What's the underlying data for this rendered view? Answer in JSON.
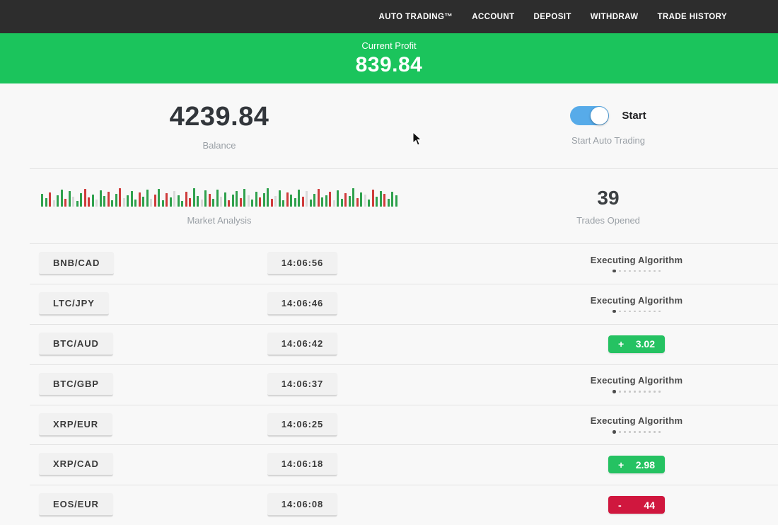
{
  "nav": {
    "items": [
      {
        "label": "AUTO TRADING™"
      },
      {
        "label": "ACCOUNT"
      },
      {
        "label": "DEPOSIT"
      },
      {
        "label": "WITHDRAW"
      },
      {
        "label": "TRADE HISTORY"
      }
    ]
  },
  "profit_banner": {
    "label": "Current Profit",
    "value": "839.84"
  },
  "account": {
    "balance_value": "4239.84",
    "balance_label": "Balance",
    "toggle_label": "Start",
    "toggle_caption": "Start Auto Trading",
    "toggle_state": "on"
  },
  "market": {
    "trades_value": "39",
    "trades_label": "Trades Opened"
  },
  "chart_data": {
    "type": "bar",
    "title": "Market Analysis",
    "values": [
      18,
      12,
      20,
      9,
      16,
      24,
      11,
      22,
      14,
      8,
      19,
      25,
      13,
      17,
      10,
      23,
      15,
      21,
      9,
      18,
      26,
      12,
      16,
      22,
      10,
      20,
      14,
      24,
      11,
      17,
      25,
      9,
      19,
      13,
      22,
      16,
      8,
      21,
      12,
      26,
      15,
      10,
      23,
      18,
      11,
      24,
      14,
      20,
      9,
      17,
      22,
      12,
      25,
      16,
      10,
      21,
      13,
      19,
      26,
      11,
      15,
      23,
      9,
      20,
      17,
      12,
      24,
      14,
      22,
      10,
      18,
      25,
      13,
      16,
      21,
      9,
      23,
      11,
      19,
      15,
      26,
      12,
      20,
      17,
      10,
      24,
      14,
      22,
      18,
      11,
      21,
      16
    ],
    "colors": [
      "g",
      "g",
      "r",
      "l",
      "g",
      "g",
      "r",
      "g",
      "l",
      "g",
      "g",
      "r",
      "r",
      "g",
      "l",
      "g",
      "g",
      "r",
      "g",
      "g",
      "r",
      "l",
      "g",
      "g",
      "g",
      "r",
      "g",
      "g",
      "l",
      "r",
      "g",
      "g",
      "r",
      "g",
      "l",
      "g",
      "g",
      "r",
      "r",
      "g",
      "g",
      "l",
      "g",
      "r",
      "g",
      "g",
      "l",
      "g",
      "r",
      "g",
      "g",
      "r",
      "g",
      "l",
      "g",
      "g",
      "r",
      "g",
      "g",
      "r",
      "l",
      "g",
      "g",
      "r",
      "g",
      "g",
      "g",
      "r",
      "l",
      "g",
      "g",
      "r",
      "g",
      "g",
      "r",
      "l",
      "g",
      "g",
      "r",
      "g",
      "g",
      "r",
      "g",
      "l",
      "g",
      "r",
      "g",
      "g",
      "r",
      "g",
      "g",
      "g"
    ],
    "color_map": {
      "g": "#2fa14d",
      "r": "#cf3b3b",
      "l": "#d9d9d9"
    },
    "ylim": [
      0,
      28
    ]
  },
  "trades": [
    {
      "pair": "BNB/CAD",
      "time": "14:06:56",
      "status": "executing",
      "status_label": "Executing Algorithm"
    },
    {
      "pair": "LTC/JPY",
      "time": "14:06:46",
      "status": "executing",
      "status_label": "Executing Algorithm"
    },
    {
      "pair": "BTC/AUD",
      "time": "14:06:42",
      "status": "profit",
      "sign": "+",
      "result": "3.02"
    },
    {
      "pair": "BTC/GBP",
      "time": "14:06:37",
      "status": "executing",
      "status_label": "Executing Algorithm"
    },
    {
      "pair": "XRP/EUR",
      "time": "14:06:25",
      "status": "executing",
      "status_label": "Executing Algorithm"
    },
    {
      "pair": "XRP/CAD",
      "time": "14:06:18",
      "status": "profit",
      "sign": "+",
      "result": "2.98"
    },
    {
      "pair": "EOS/EUR",
      "time": "14:06:08",
      "status": "loss",
      "sign": "-",
      "result": "44"
    }
  ],
  "status_dots_total": 10,
  "colors": {
    "nav_bg": "#2d2d2d",
    "banner_green": "#1bc45c",
    "badge_green": "#25c262",
    "badge_red": "#d0173e",
    "toggle_blue": "#57abe9"
  }
}
